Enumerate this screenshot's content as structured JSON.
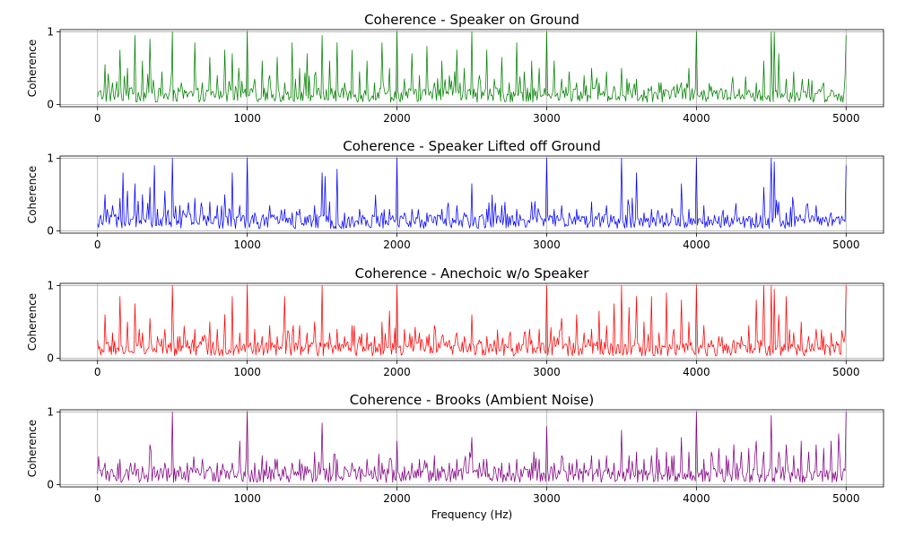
{
  "figure": {
    "xlabel": "Frequency (Hz)"
  },
  "chart_data": [
    {
      "type": "line",
      "title": "Coherence - Speaker on Ground",
      "ylabel": "Coherence",
      "xlabel": "",
      "xlim": [
        -250,
        5250
      ],
      "ylim": [
        -0.03,
        1.03
      ],
      "xticks": [
        "0",
        "1000",
        "2000",
        "3000",
        "4000",
        "5000"
      ],
      "yticks": [
        "0",
        "1"
      ],
      "grid": true,
      "color": "#008000",
      "series": [
        {
          "x": [
            0,
            50,
            100,
            150,
            200,
            250,
            300,
            350,
            380,
            430,
            490,
            500,
            510,
            560,
            600,
            650,
            700,
            750,
            800,
            850,
            900,
            950,
            1000,
            1050,
            1100,
            1150,
            1200,
            1250,
            1300,
            1350,
            1400,
            1450,
            1500,
            1550,
            1600,
            1650,
            1700,
            1750,
            1800,
            1850,
            1900,
            1950,
            2000,
            2050,
            2100,
            2150,
            2200,
            2250,
            2300,
            2350,
            2400,
            2450,
            2500,
            2550,
            2600,
            2650,
            2700,
            2750,
            2800,
            2850,
            2900,
            2950,
            3000,
            3050,
            3100,
            3150,
            3200,
            3250,
            3300,
            3350,
            3400,
            3450,
            3500,
            3550,
            3600,
            3650,
            3700,
            3750,
            3800,
            3850,
            3900,
            3950,
            4000,
            4050,
            4100,
            4150,
            4200,
            4250,
            4300,
            4350,
            4400,
            4450,
            4500,
            4520,
            4550,
            4600,
            4650,
            4700,
            4750,
            4800,
            4850,
            4900,
            4950,
            5000
          ],
          "y": [
            0.1,
            0.55,
            0.3,
            0.75,
            0.5,
            0.95,
            0.6,
            0.9,
            0.2,
            0.45,
            0.3,
            1.0,
            0.2,
            0.3,
            0.1,
            0.85,
            0.3,
            0.65,
            0.4,
            0.75,
            0.7,
            0.3,
            1.0,
            0.35,
            0.6,
            0.4,
            0.65,
            0.3,
            0.85,
            0.5,
            0.7,
            0.4,
            0.95,
            0.6,
            0.85,
            0.3,
            0.75,
            0.45,
            0.6,
            0.3,
            0.85,
            0.5,
            1.0,
            0.35,
            0.7,
            0.4,
            0.8,
            0.3,
            0.6,
            0.4,
            0.75,
            0.5,
            1.0,
            0.4,
            0.75,
            0.35,
            0.65,
            0.3,
            0.85,
            0.45,
            0.6,
            0.5,
            1.0,
            0.6,
            0.35,
            0.45,
            0.3,
            0.4,
            0.5,
            0.3,
            0.45,
            0.25,
            0.5,
            0.3,
            0.35,
            0.2,
            0.25,
            0.3,
            0.2,
            0.25,
            0.3,
            0.5,
            1.0,
            0.2,
            0.25,
            0.15,
            0.2,
            0.15,
            0.1,
            0.2,
            0.3,
            0.6,
            1.0,
            1.0,
            0.7,
            0.35,
            0.45,
            0.2,
            0.35,
            0.15,
            0.3,
            0.2,
            0.15,
            0.95
          ]
        }
      ]
    },
    {
      "type": "line",
      "title": "Coherence - Speaker Lifted off Ground",
      "ylabel": "Coherence",
      "xlabel": "",
      "xlim": [
        -250,
        5250
      ],
      "ylim": [
        -0.03,
        1.03
      ],
      "xticks": [
        "0",
        "1000",
        "2000",
        "3000",
        "4000",
        "5000"
      ],
      "yticks": [
        "0",
        "1"
      ],
      "grid": true,
      "color": "#0000ff",
      "series": [
        {
          "x": [
            0,
            50,
            100,
            150,
            170,
            200,
            250,
            300,
            350,
            380,
            400,
            450,
            500,
            550,
            600,
            650,
            700,
            750,
            800,
            850,
            900,
            950,
            1000,
            1050,
            1100,
            1150,
            1200,
            1250,
            1300,
            1350,
            1400,
            1450,
            1500,
            1520,
            1550,
            1600,
            1650,
            1700,
            1750,
            1800,
            1850,
            1900,
            1950,
            2000,
            2050,
            2100,
            2150,
            2200,
            2250,
            2300,
            2350,
            2400,
            2450,
            2500,
            2550,
            2600,
            2650,
            2700,
            2750,
            2800,
            2850,
            2900,
            2950,
            3000,
            3050,
            3100,
            3150,
            3200,
            3250,
            3300,
            3350,
            3400,
            3450,
            3500,
            3550,
            3600,
            3650,
            3700,
            3750,
            3800,
            3850,
            3900,
            3950,
            4000,
            4050,
            4100,
            4150,
            4200,
            4250,
            4300,
            4350,
            4400,
            4450,
            4500,
            4520,
            4550,
            4600,
            4650,
            4700,
            4750,
            4800,
            4850,
            4900,
            4950,
            5000
          ],
          "y": [
            0.1,
            0.5,
            0.35,
            0.45,
            0.8,
            0.55,
            0.65,
            0.5,
            0.6,
            0.9,
            0.3,
            0.55,
            1.0,
            0.35,
            0.25,
            0.45,
            0.3,
            0.4,
            0.35,
            0.5,
            0.8,
            0.35,
            1.0,
            0.25,
            0.2,
            0.35,
            0.2,
            0.3,
            0.25,
            0.3,
            0.2,
            0.35,
            0.8,
            0.75,
            0.4,
            0.85,
            0.25,
            0.2,
            0.3,
            0.15,
            0.2,
            0.25,
            0.3,
            1.0,
            0.25,
            0.3,
            0.15,
            0.25,
            0.2,
            0.3,
            0.15,
            0.35,
            0.25,
            0.65,
            0.2,
            0.3,
            0.25,
            0.35,
            0.2,
            0.3,
            0.15,
            0.4,
            0.25,
            1.0,
            0.3,
            0.35,
            0.25,
            0.3,
            0.2,
            0.4,
            0.25,
            0.35,
            0.2,
            1.0,
            0.35,
            0.8,
            0.25,
            0.3,
            0.2,
            0.25,
            0.2,
            0.65,
            0.3,
            1.0,
            0.35,
            0.15,
            0.2,
            0.1,
            0.15,
            0.1,
            0.2,
            0.25,
            0.6,
            1.0,
            0.95,
            0.4,
            0.25,
            0.35,
            0.15,
            0.2,
            0.35,
            0.15,
            0.25,
            0.2,
            0.9
          ]
        }
      ]
    },
    {
      "type": "line",
      "title": "Coherence - Anechoic w/o Speaker",
      "ylabel": "Coherence",
      "xlabel": "",
      "xlim": [
        -250,
        5250
      ],
      "ylim": [
        -0.03,
        1.03
      ],
      "xticks": [
        "0",
        "1000",
        "2000",
        "3000",
        "4000",
        "5000"
      ],
      "yticks": [
        "0",
        "1"
      ],
      "grid": true,
      "color": "#ff0000",
      "series": [
        {
          "x": [
            0,
            50,
            100,
            150,
            200,
            250,
            300,
            350,
            400,
            450,
            500,
            550,
            600,
            650,
            700,
            750,
            800,
            850,
            900,
            950,
            1000,
            1050,
            1100,
            1150,
            1200,
            1250,
            1300,
            1350,
            1400,
            1450,
            1500,
            1550,
            1600,
            1650,
            1700,
            1750,
            1800,
            1850,
            1900,
            1950,
            2000,
            2050,
            2100,
            2150,
            2200,
            2250,
            2300,
            2350,
            2400,
            2450,
            2500,
            2550,
            2600,
            2650,
            2700,
            2750,
            2800,
            2850,
            2900,
            2950,
            3000,
            3050,
            3100,
            3150,
            3200,
            3250,
            3300,
            3350,
            3400,
            3450,
            3500,
            3550,
            3600,
            3650,
            3700,
            3750,
            3800,
            3850,
            3900,
            3950,
            4000,
            4050,
            4100,
            4150,
            4200,
            4250,
            4300,
            4350,
            4400,
            4450,
            4500,
            4520,
            4550,
            4600,
            4650,
            4700,
            4750,
            4800,
            4850,
            4900,
            4950,
            5000
          ],
          "y": [
            0.25,
            0.6,
            0.35,
            0.85,
            0.5,
            0.75,
            0.35,
            0.55,
            0.3,
            0.4,
            1.0,
            0.3,
            0.25,
            0.4,
            0.3,
            0.5,
            0.4,
            0.6,
            0.85,
            0.35,
            1.0,
            0.4,
            0.3,
            0.45,
            0.3,
            0.85,
            0.3,
            0.45,
            0.35,
            0.5,
            1.0,
            0.35,
            0.4,
            0.3,
            0.45,
            0.3,
            0.35,
            0.3,
            0.5,
            0.65,
            1.0,
            0.4,
            0.3,
            0.35,
            0.3,
            0.45,
            0.3,
            0.25,
            0.35,
            0.3,
            0.6,
            0.25,
            0.3,
            0.25,
            0.2,
            0.3,
            0.2,
            0.35,
            0.25,
            0.4,
            1.0,
            0.3,
            0.55,
            0.3,
            0.6,
            0.35,
            0.4,
            0.65,
            0.45,
            0.75,
            1.0,
            0.7,
            0.85,
            0.5,
            0.85,
            0.35,
            0.9,
            0.4,
            0.8,
            0.5,
            1.0,
            0.45,
            0.25,
            0.3,
            0.2,
            0.25,
            0.3,
            0.45,
            0.8,
            1.0,
            1.0,
            0.95,
            0.6,
            0.85,
            0.35,
            0.5,
            0.3,
            0.4,
            0.3,
            0.35,
            0.2,
            1.0
          ]
        }
      ]
    },
    {
      "type": "line",
      "title": "Coherence - Brooks (Ambient Noise)",
      "ylabel": "Coherence",
      "xlabel": "Frequency (Hz)",
      "xlim": [
        -250,
        5250
      ],
      "ylim": [
        -0.03,
        1.03
      ],
      "xticks": [
        "0",
        "1000",
        "2000",
        "3000",
        "4000",
        "5000"
      ],
      "yticks": [
        "0",
        "1"
      ],
      "grid": true,
      "color": "#800080",
      "series": [
        {
          "x": [
            0,
            50,
            100,
            150,
            200,
            250,
            300,
            350,
            400,
            450,
            500,
            550,
            600,
            650,
            700,
            750,
            800,
            850,
            900,
            950,
            1000,
            1050,
            1100,
            1150,
            1200,
            1250,
            1300,
            1350,
            1400,
            1450,
            1500,
            1550,
            1600,
            1650,
            1700,
            1750,
            1800,
            1850,
            1900,
            1950,
            2000,
            2050,
            2100,
            2150,
            2200,
            2250,
            2300,
            2350,
            2400,
            2450,
            2500,
            2550,
            2600,
            2650,
            2700,
            2750,
            2800,
            2850,
            2900,
            2950,
            3000,
            3050,
            3100,
            3150,
            3200,
            3250,
            3300,
            3350,
            3400,
            3450,
            3500,
            3550,
            3600,
            3650,
            3700,
            3750,
            3800,
            3850,
            3900,
            3950,
            4000,
            4050,
            4100,
            4150,
            4200,
            4250,
            4300,
            4350,
            4400,
            4450,
            4500,
            4550,
            4600,
            4650,
            4700,
            4750,
            4800,
            4850,
            4900,
            4950,
            5000
          ],
          "y": [
            0.15,
            0.3,
            0.2,
            0.35,
            0.2,
            0.3,
            0.25,
            0.55,
            0.2,
            0.3,
            1.0,
            0.25,
            0.3,
            0.2,
            0.35,
            0.25,
            0.3,
            0.2,
            0.3,
            0.6,
            1.0,
            0.3,
            0.4,
            0.25,
            0.35,
            0.25,
            0.3,
            0.35,
            0.25,
            0.45,
            0.85,
            0.3,
            0.35,
            0.25,
            0.3,
            0.25,
            0.35,
            0.25,
            0.3,
            0.35,
            0.6,
            0.25,
            0.3,
            0.35,
            0.3,
            0.4,
            0.25,
            0.3,
            0.35,
            0.3,
            0.65,
            0.3,
            0.35,
            0.25,
            0.3,
            0.3,
            0.35,
            0.25,
            0.3,
            0.35,
            0.8,
            0.3,
            0.4,
            0.3,
            0.35,
            0.3,
            0.4,
            0.35,
            0.4,
            0.3,
            0.75,
            0.4,
            0.45,
            0.35,
            0.4,
            0.35,
            0.45,
            0.4,
            0.65,
            0.45,
            1.0,
            0.35,
            0.45,
            0.5,
            0.4,
            0.55,
            0.45,
            0.5,
            0.6,
            0.45,
            0.95,
            0.45,
            0.55,
            0.4,
            0.6,
            0.45,
            0.55,
            0.5,
            0.6,
            0.7,
            1.0
          ]
        }
      ]
    }
  ]
}
